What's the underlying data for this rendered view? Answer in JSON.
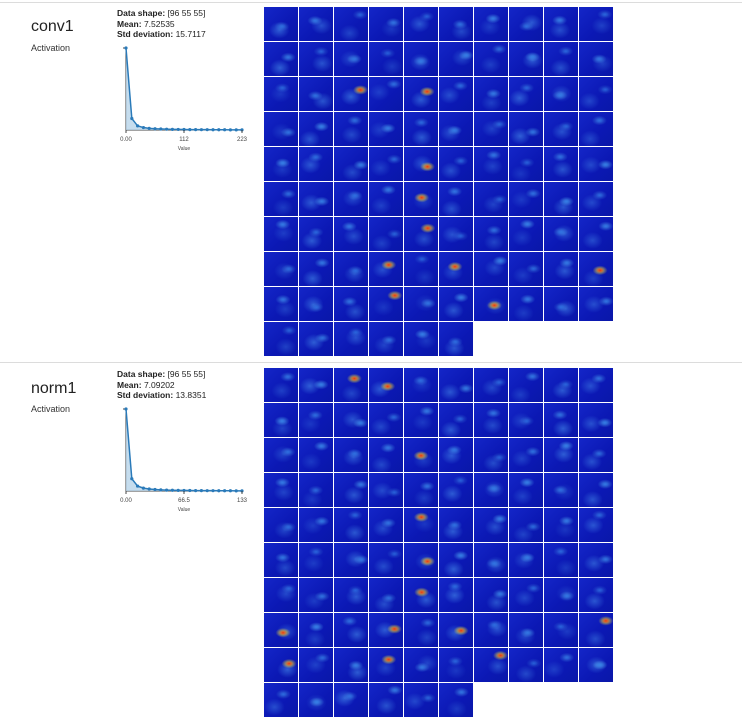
{
  "layers": [
    {
      "name": "conv1",
      "type": "Activation",
      "stats": {
        "shape_label": "Data shape:",
        "shape_value": "[96 55 55]",
        "mean_label": "Mean:",
        "mean_value": "7.52535",
        "std_label": "Std deviation:",
        "std_value": "15.7117"
      },
      "chart_data": {
        "type": "area",
        "x": [
          0,
          11.2,
          22.3,
          33.5,
          44.6,
          55.8,
          66.9,
          78.1,
          89.2,
          100.4,
          111.5,
          122.7,
          133.8,
          145,
          156.1,
          167.3,
          178.4,
          189.6,
          200.7,
          211.9,
          223
        ],
        "values": [
          1.0,
          0.14,
          0.05,
          0.03,
          0.02,
          0.015,
          0.012,
          0.01,
          0.008,
          0.007,
          0.006,
          0.005,
          0.005,
          0.004,
          0.004,
          0.003,
          0.003,
          0.003,
          0.002,
          0.002,
          0.002
        ],
        "xticks": [
          "0.00",
          "112",
          "223"
        ],
        "xlabel": "Value",
        "color": "#2a7ab9"
      },
      "grid": {
        "count": 96,
        "columns": 10,
        "hot": [
          22,
          24,
          44,
          64,
          73,
          54,
          75,
          79,
          83,
          86
        ]
      }
    },
    {
      "name": "norm1",
      "type": "Activation",
      "stats": {
        "shape_label": "Data shape:",
        "shape_value": "[96 55 55]",
        "mean_label": "Mean:",
        "mean_value": "7.09202",
        "std_label": "Std deviation:",
        "std_value": "13.8351"
      },
      "chart_data": {
        "type": "area",
        "x": [
          0,
          6.65,
          13.3,
          19.95,
          26.6,
          33.25,
          39.9,
          46.55,
          53.2,
          59.85,
          66.5,
          73.15,
          79.8,
          86.45,
          93.1,
          99.75,
          106.4,
          113.05,
          119.7,
          126.35,
          133
        ],
        "values": [
          1.0,
          0.15,
          0.06,
          0.035,
          0.025,
          0.018,
          0.014,
          0.011,
          0.009,
          0.008,
          0.007,
          0.006,
          0.005,
          0.005,
          0.004,
          0.004,
          0.003,
          0.003,
          0.003,
          0.002,
          0.002
        ],
        "xticks": [
          "0.00",
          "66.5",
          "133"
        ],
        "xlabel": "Value",
        "color": "#2a7ab9"
      },
      "grid": {
        "count": 96,
        "columns": 10,
        "hot": [
          2,
          3,
          24,
          44,
          64,
          73,
          54,
          75,
          79,
          83,
          86,
          70,
          80
        ]
      }
    }
  ]
}
